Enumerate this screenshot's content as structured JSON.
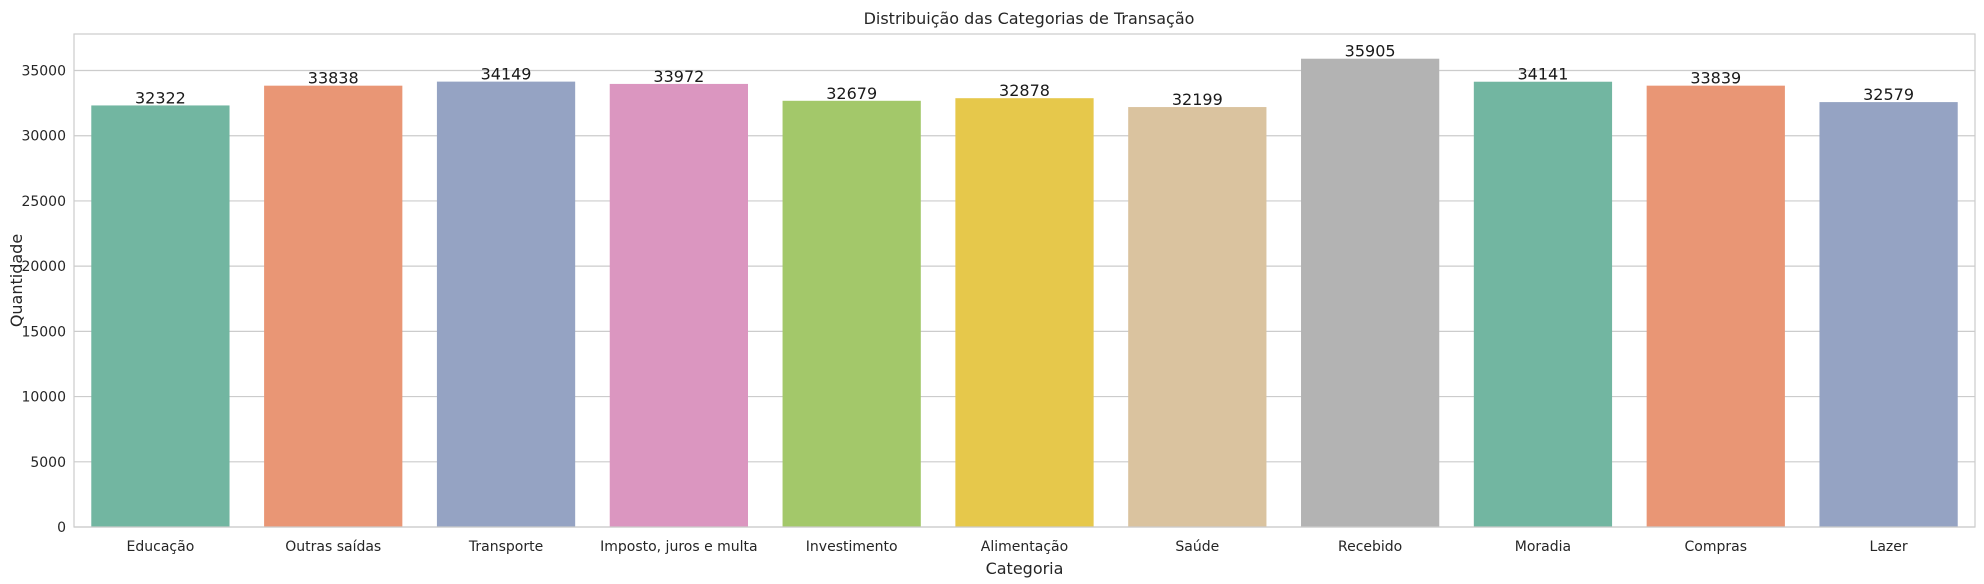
{
  "chart_data": {
    "type": "bar",
    "title": "Distribuição das Categorias de Transação",
    "xlabel": "Categoria",
    "ylabel": "Quantidade",
    "ylim": [
      0,
      37800
    ],
    "yticks": [
      0,
      5000,
      10000,
      15000,
      20000,
      25000,
      30000,
      35000
    ],
    "grid": "horizontal",
    "legend": "none",
    "categories": [
      "Educação",
      "Outras saídas",
      "Transporte",
      "Imposto, juros e multa",
      "Investimento",
      "Alimentação",
      "Saúde",
      "Recebido",
      "Moradia",
      "Compras",
      "Lazer"
    ],
    "values": [
      32322,
      33838,
      34149,
      33972,
      32679,
      32878,
      32199,
      35905,
      34141,
      33839,
      32579
    ],
    "colors": [
      "#72b6a1",
      "#e99675",
      "#95a3c3",
      "#db96c0",
      "#a3c86a",
      "#e6c84b",
      "#dac39f",
      "#b3b3b3",
      "#72b6a1",
      "#e99675",
      "#95a3c3"
    ]
  }
}
